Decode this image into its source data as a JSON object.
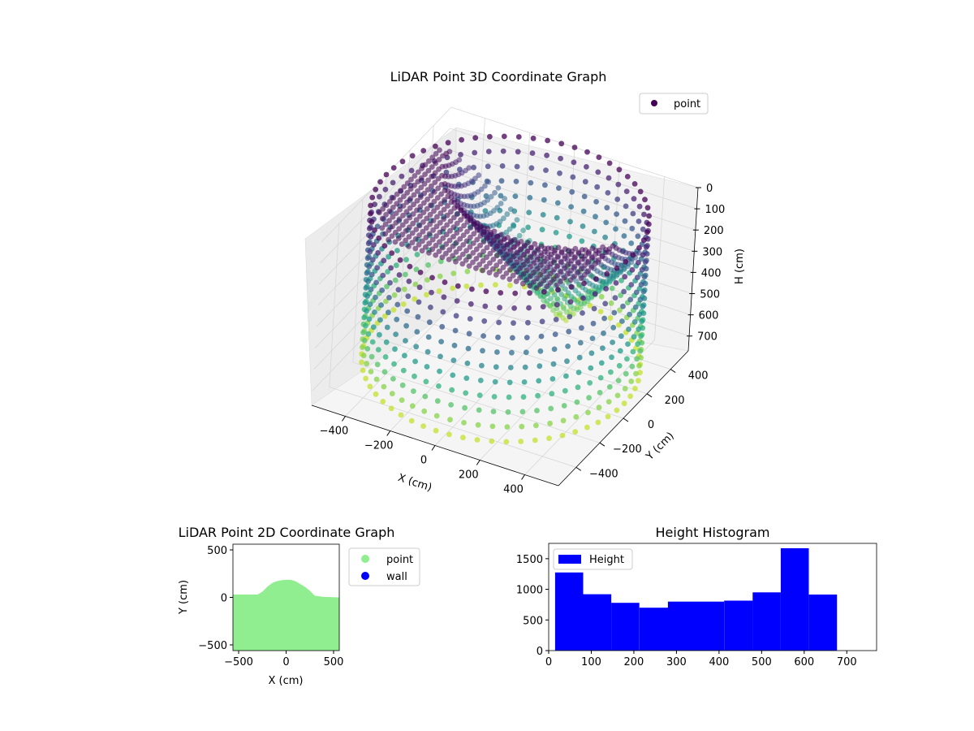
{
  "chart_data": [
    {
      "type": "scatter",
      "projection": "3d",
      "title": "LiDAR Point 3D Coordinate Graph",
      "xlabel": "X (cm)",
      "ylabel": "Y (cm)",
      "zlabel": "H (cm)",
      "xticks": [
        "−400",
        "−200",
        "0",
        "200",
        "400"
      ],
      "yticks": [
        "−400",
        "−200",
        "0",
        "200",
        "400"
      ],
      "zticks": [
        "0",
        "100",
        "200",
        "300",
        "400",
        "500",
        "600",
        "700"
      ],
      "xlim": [
        -550,
        550
      ],
      "ylim": [
        -550,
        550
      ],
      "zlim": [
        0,
        770
      ],
      "z_inverted": true,
      "colormap": "viridis",
      "legend": [
        {
          "name": "point",
          "color": "#440154"
        }
      ],
      "legend_position": "upper-right",
      "grid": true,
      "series": [
        {
          "name": "point",
          "description_structure": "outer ring of vertical columns at radius ~550 cm with heights 0-700; dome-shaped surface over center rising to ~700 cm near X~100, Y~400",
          "ring_radius": 550,
          "ring_height_range": [
            0,
            700
          ],
          "dome_peak_h": 700
        }
      ]
    },
    {
      "type": "scatter",
      "title": "LiDAR Point 2D Coordinate Graph",
      "xlabel": "X (cm)",
      "ylabel": "Y (cm)",
      "xticks": [
        "−500",
        "0",
        "500"
      ],
      "yticks": [
        "−500",
        "0",
        "500"
      ],
      "xlim": [
        -560,
        560
      ],
      "ylim": [
        -560,
        560
      ],
      "legend": [
        {
          "name": "point",
          "color": "#90ee90"
        },
        {
          "name": "wall",
          "color": "#0000ff"
        }
      ],
      "legend_position": "outside-right",
      "series": [
        {
          "name": "point",
          "color": "#90ee90",
          "upper_boundary": [
            {
              "x": -560,
              "y": 30
            },
            {
              "x": -300,
              "y": 30
            },
            {
              "x": -250,
              "y": 60
            },
            {
              "x": -200,
              "y": 110
            },
            {
              "x": -150,
              "y": 150
            },
            {
              "x": -100,
              "y": 170
            },
            {
              "x": -50,
              "y": 180
            },
            {
              "x": 0,
              "y": 185
            },
            {
              "x": 50,
              "y": 185
            },
            {
              "x": 100,
              "y": 170
            },
            {
              "x": 150,
              "y": 140
            },
            {
              "x": 200,
              "y": 110
            },
            {
              "x": 250,
              "y": 70
            },
            {
              "x": 300,
              "y": 20
            },
            {
              "x": 350,
              "y": 10
            },
            {
              "x": 400,
              "y": 5
            },
            {
              "x": 560,
              "y": 0
            }
          ],
          "lower_y": -560
        }
      ]
    },
    {
      "type": "bar",
      "title": "Height Histogram",
      "xlabel": "",
      "ylabel": "",
      "xticks": [
        "0",
        "100",
        "200",
        "300",
        "400",
        "500",
        "600",
        "700"
      ],
      "yticks": [
        "0",
        "500",
        "1000",
        "1500"
      ],
      "xlim": [
        0,
        770
      ],
      "ylim": [
        0,
        1750
      ],
      "legend": [
        {
          "name": "Height",
          "color": "#0000ff"
        }
      ],
      "legend_position": "upper-left",
      "bin_edges": [
        15,
        81,
        147,
        213,
        280,
        346,
        412,
        479,
        545,
        611,
        677
      ],
      "series": [
        {
          "name": "Height",
          "color": "#0000ff",
          "values": [
            1275,
            920,
            780,
            700,
            800,
            800,
            815,
            950,
            1670,
            915
          ]
        }
      ]
    }
  ]
}
